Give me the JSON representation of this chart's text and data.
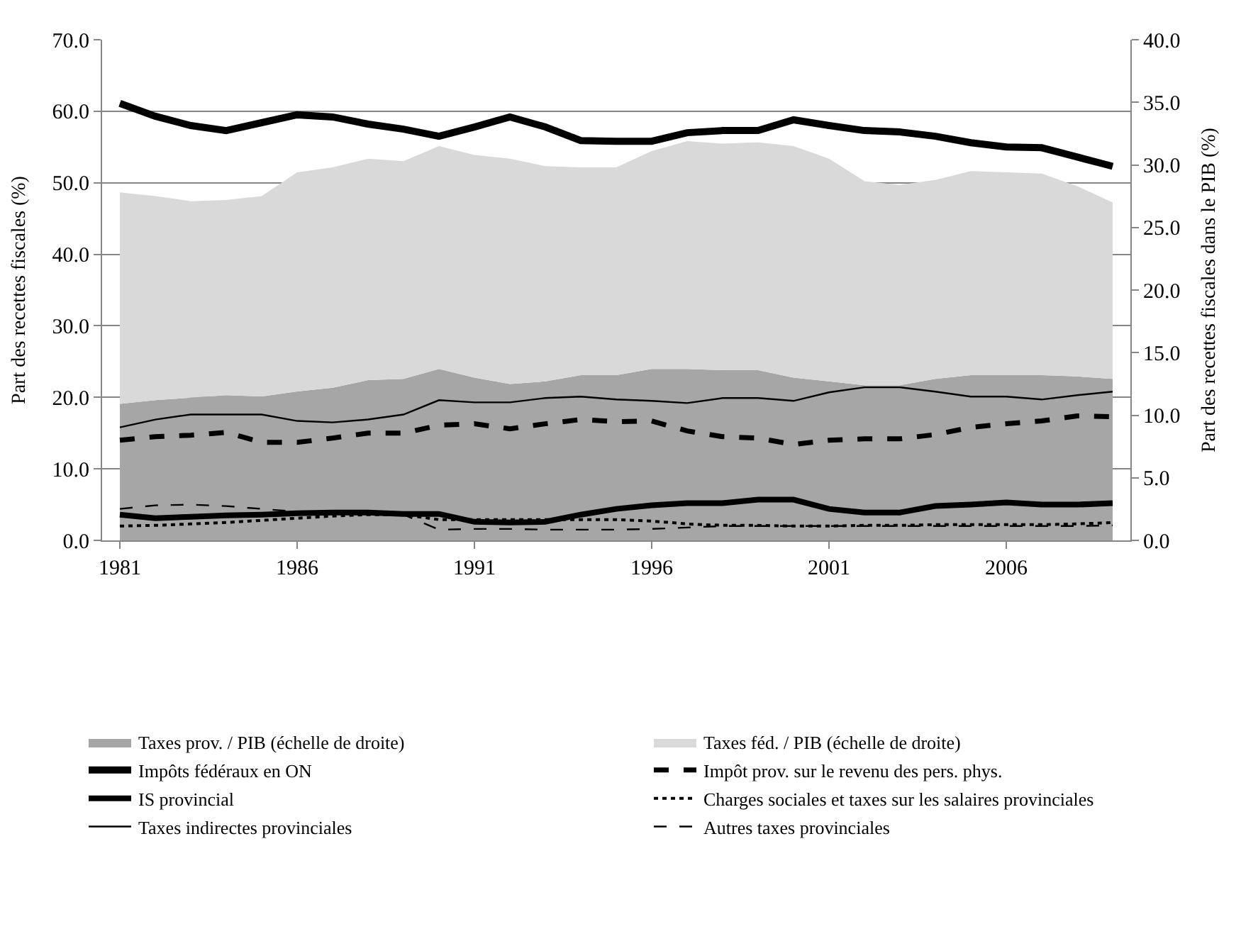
{
  "chart_data": {
    "type": "line",
    "ylabel": "Part des recettes fiscales (%)",
    "y2label": "Part des recettes fiscales dans le PIB (%)",
    "x": [
      1981,
      1982,
      1983,
      1984,
      1985,
      1986,
      1987,
      1988,
      1989,
      1990,
      1991,
      1992,
      1993,
      1994,
      1995,
      1996,
      1997,
      1998,
      1999,
      2000,
      2001,
      2002,
      2003,
      2004,
      2005,
      2006,
      2007,
      2008,
      2009
    ],
    "xlim": [
      1980.5,
      2009.5
    ],
    "xticks": [
      1981,
      1986,
      1991,
      1996,
      2001,
      2006
    ],
    "ylim": [
      0,
      70
    ],
    "yticks": [
      {
        "value": 0,
        "label": "0.0"
      },
      {
        "value": 10,
        "label": "10.0"
      },
      {
        "value": 20,
        "label": "20.0"
      },
      {
        "value": 30,
        "label": "30.0"
      },
      {
        "value": 40,
        "label": "40.0"
      },
      {
        "value": 50,
        "label": "50.0"
      },
      {
        "value": 60,
        "label": "60.0"
      },
      {
        "value": 70,
        "label": "70.0"
      }
    ],
    "y2lim": [
      0,
      40
    ],
    "y2ticks": [
      {
        "value": 0,
        "label": "0.0"
      },
      {
        "value": 5,
        "label": "5.0"
      },
      {
        "value": 10,
        "label": "10.0"
      },
      {
        "value": 15,
        "label": "15.0"
      },
      {
        "value": 20,
        "label": "20.0"
      },
      {
        "value": 25,
        "label": "25.0"
      },
      {
        "value": 30,
        "label": "30.0"
      },
      {
        "value": 35,
        "label": "35.0"
      },
      {
        "value": 40,
        "label": "40.0"
      }
    ],
    "grid": "y",
    "legend": "bottom",
    "stacked": true,
    "series": [
      {
        "name": "Taxes prov. / PIB (échelle de droite)",
        "type": "area",
        "axis": "y2",
        "color": "#a6a6a6",
        "values": [
          10.9,
          11.2,
          11.4,
          11.6,
          11.5,
          11.9,
          12.2,
          12.8,
          12.9,
          13.7,
          13.0,
          12.5,
          12.7,
          13.2,
          13.2,
          13.7,
          13.7,
          13.6,
          13.6,
          13.0,
          12.7,
          12.4,
          12.4,
          12.9,
          13.2,
          13.2,
          13.2,
          13.1,
          12.9
        ]
      },
      {
        "name": "Taxes féd. / PIB (échelle de droite)",
        "type": "area",
        "axis": "y2",
        "color": "#d9d9d9",
        "values": [
          16.9,
          16.3,
          15.7,
          15.6,
          16.0,
          17.5,
          17.6,
          17.7,
          17.4,
          17.8,
          17.8,
          18.0,
          17.2,
          16.6,
          16.6,
          17.4,
          18.2,
          18.1,
          18.2,
          18.5,
          17.8,
          16.3,
          16.0,
          15.9,
          16.3,
          16.2,
          16.1,
          15.2,
          14.1
        ]
      },
      {
        "name": "Impôts fédéraux en ON",
        "color": "#000000",
        "line_style": "solid",
        "values": [
          61.1,
          59.3,
          58.0,
          57.3,
          58.4,
          59.5,
          59.2,
          58.2,
          57.5,
          56.5,
          57.8,
          59.2,
          57.8,
          55.9,
          55.8,
          55.8,
          57.0,
          57.3,
          57.3,
          58.8,
          58.0,
          57.3,
          57.1,
          56.5,
          55.6,
          55.0,
          54.9,
          53.6,
          52.3
        ]
      },
      {
        "name": "Impôt prov. sur le revenu des pers. phys.",
        "color": "#000000",
        "line_style": "dashed",
        "values": [
          14.0,
          14.5,
          14.7,
          15.1,
          13.7,
          13.7,
          14.3,
          15.0,
          15.0,
          16.1,
          16.3,
          15.6,
          16.3,
          16.9,
          16.6,
          16.7,
          15.3,
          14.5,
          14.3,
          13.4,
          14.0,
          14.2,
          14.2,
          14.8,
          15.8,
          16.3,
          16.7,
          17.4,
          17.3
        ]
      },
      {
        "name": "IS provincial",
        "color": "#000000",
        "line_style": "solid",
        "values": [
          3.6,
          3.1,
          3.3,
          3.5,
          3.6,
          3.8,
          3.9,
          3.9,
          3.7,
          3.7,
          2.6,
          2.5,
          2.6,
          3.6,
          4.4,
          4.9,
          5.2,
          5.2,
          5.7,
          5.7,
          4.4,
          3.9,
          3.9,
          4.8,
          5.0,
          5.3,
          5.0,
          5.0,
          5.2
        ]
      },
      {
        "name": "Charges sociales et taxes sur les salaires provinciales",
        "color": "#000000",
        "line_style": "dotted",
        "values": [
          2.0,
          2.1,
          2.3,
          2.5,
          2.8,
          3.1,
          3.4,
          3.6,
          3.6,
          2.9,
          2.9,
          2.9,
          2.9,
          2.9,
          2.9,
          2.7,
          2.3,
          2.1,
          2.1,
          2.0,
          2.0,
          2.1,
          2.1,
          2.2,
          2.2,
          2.2,
          2.2,
          2.3,
          2.5
        ]
      },
      {
        "name": "Taxes indirectes provinciales",
        "color": "#000000",
        "line_style": "solid",
        "values": [
          15.8,
          16.9,
          17.6,
          17.6,
          17.6,
          16.7,
          16.5,
          16.9,
          17.6,
          19.6,
          19.3,
          19.3,
          19.9,
          20.1,
          19.7,
          19.5,
          19.2,
          19.9,
          19.9,
          19.5,
          20.7,
          21.4,
          21.4,
          20.8,
          20.1,
          20.1,
          19.7,
          20.3,
          20.8
        ]
      },
      {
        "name": "Autres taxes provinciales",
        "color": "#000000",
        "line_style": "dashed",
        "values": [
          4.4,
          4.9,
          5.0,
          4.8,
          4.4,
          4.0,
          3.9,
          3.7,
          3.6,
          1.5,
          1.6,
          1.6,
          1.5,
          1.5,
          1.5,
          1.6,
          1.8,
          2.0,
          2.0,
          2.0,
          2.0,
          2.0,
          2.0,
          2.0,
          2.0,
          2.0,
          2.0,
          2.0,
          2.1
        ]
      }
    ]
  }
}
